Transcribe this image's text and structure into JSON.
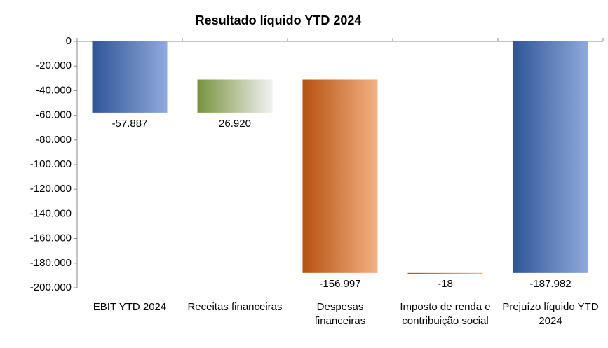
{
  "chart_data": {
    "type": "waterfall",
    "title": "Resultado líquido YTD 2024",
    "categories": [
      "EBIT YTD 2024",
      "Receitas financeiras",
      "Despesas financeiras",
      "Imposto de renda e contribuição social",
      "Prejuízo líquido YTD 2024"
    ],
    "values": [
      -57887,
      26920,
      -156997,
      -18,
      -187982
    ],
    "value_labels": [
      "-57.887",
      "26.920",
      "-156.997",
      "-18",
      "-187.982"
    ],
    "colors": [
      [
        "#2f5597",
        "#8faadc"
      ],
      [
        "#77933c",
        "#f2f2f2"
      ],
      [
        "#b5520f",
        "#f4b183"
      ],
      [
        "#b5520f",
        "#f4b183"
      ],
      [
        "#2f5597",
        "#8faadc"
      ]
    ],
    "ylim": [
      -200000,
      0
    ],
    "yticks": [
      {
        "value": 0,
        "label": "0"
      },
      {
        "value": -20000,
        "label": "-20.000"
      },
      {
        "value": -40000,
        "label": "-40.000"
      },
      {
        "value": -60000,
        "label": "-60.000"
      },
      {
        "value": -80000,
        "label": "-80.000"
      },
      {
        "value": -100000,
        "label": "-100.000"
      },
      {
        "value": -120000,
        "label": "-120.000"
      },
      {
        "value": -140000,
        "label": "-140.000"
      },
      {
        "value": -160000,
        "label": "-160.000"
      },
      {
        "value": -180000,
        "label": "-180.000"
      },
      {
        "value": -200000,
        "label": "-200.000"
      }
    ]
  }
}
